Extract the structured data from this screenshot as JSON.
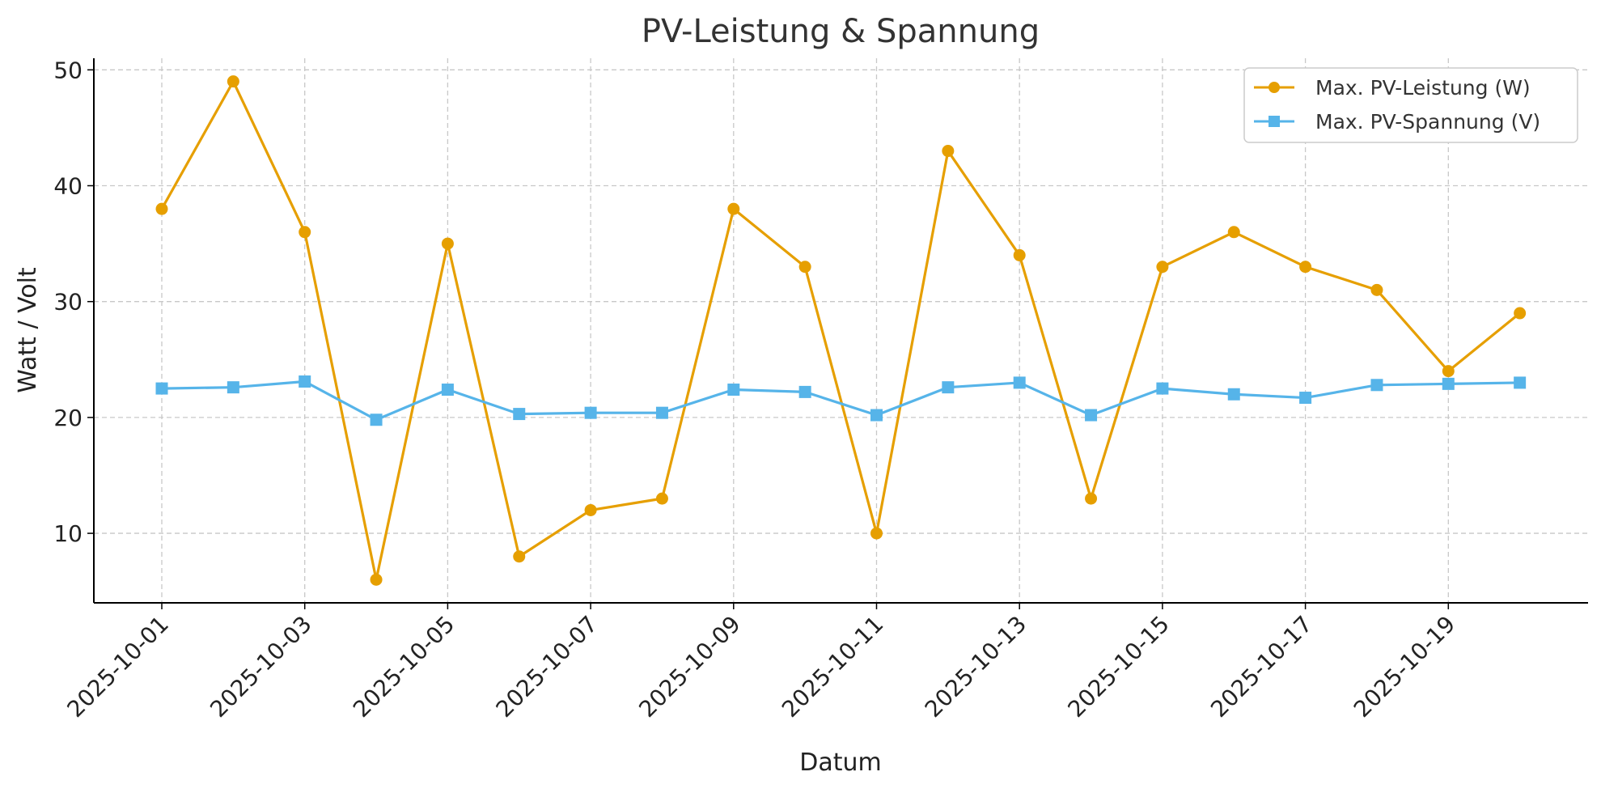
{
  "chart_data": {
    "type": "line",
    "title": "PV-Leistung & Spannung",
    "xlabel": "Datum",
    "ylabel": "Watt / Volt",
    "ylim": [
      4,
      51
    ],
    "y_ticks": [
      10,
      20,
      30,
      40,
      50
    ],
    "grid": true,
    "legend_position": "top-right",
    "x": [
      "2025-10-01",
      "2025-10-02",
      "2025-10-03",
      "2025-10-04",
      "2025-10-05",
      "2025-10-06",
      "2025-10-07",
      "2025-10-08",
      "2025-10-09",
      "2025-10-10",
      "2025-10-11",
      "2025-10-12",
      "2025-10-13",
      "2025-10-14",
      "2025-10-15",
      "2025-10-16",
      "2025-10-17",
      "2025-10-18",
      "2025-10-19",
      "2025-10-20"
    ],
    "x_tick_labels": [
      "2025-10-01",
      "2025-10-03",
      "2025-10-05",
      "2025-10-07",
      "2025-10-09",
      "2025-10-11",
      "2025-10-13",
      "2025-10-15",
      "2025-10-17",
      "2025-10-19"
    ],
    "series": [
      {
        "name": "Max. PV-Leistung (W)",
        "color": "#E69F00",
        "marker": "circle",
        "values": [
          38,
          49,
          36,
          6,
          35,
          8,
          12,
          13,
          38,
          33,
          10,
          43,
          34,
          13,
          33,
          36,
          33,
          31,
          24,
          29
        ]
      },
      {
        "name": "Max. PV-Spannung (V)",
        "color": "#56B4E9",
        "marker": "square",
        "values": [
          22.5,
          22.6,
          23.1,
          19.8,
          22.4,
          20.3,
          20.4,
          20.4,
          22.4,
          22.2,
          20.2,
          22.6,
          23.0,
          20.2,
          22.5,
          22.0,
          21.7,
          22.8,
          22.9,
          23.0
        ]
      }
    ]
  }
}
